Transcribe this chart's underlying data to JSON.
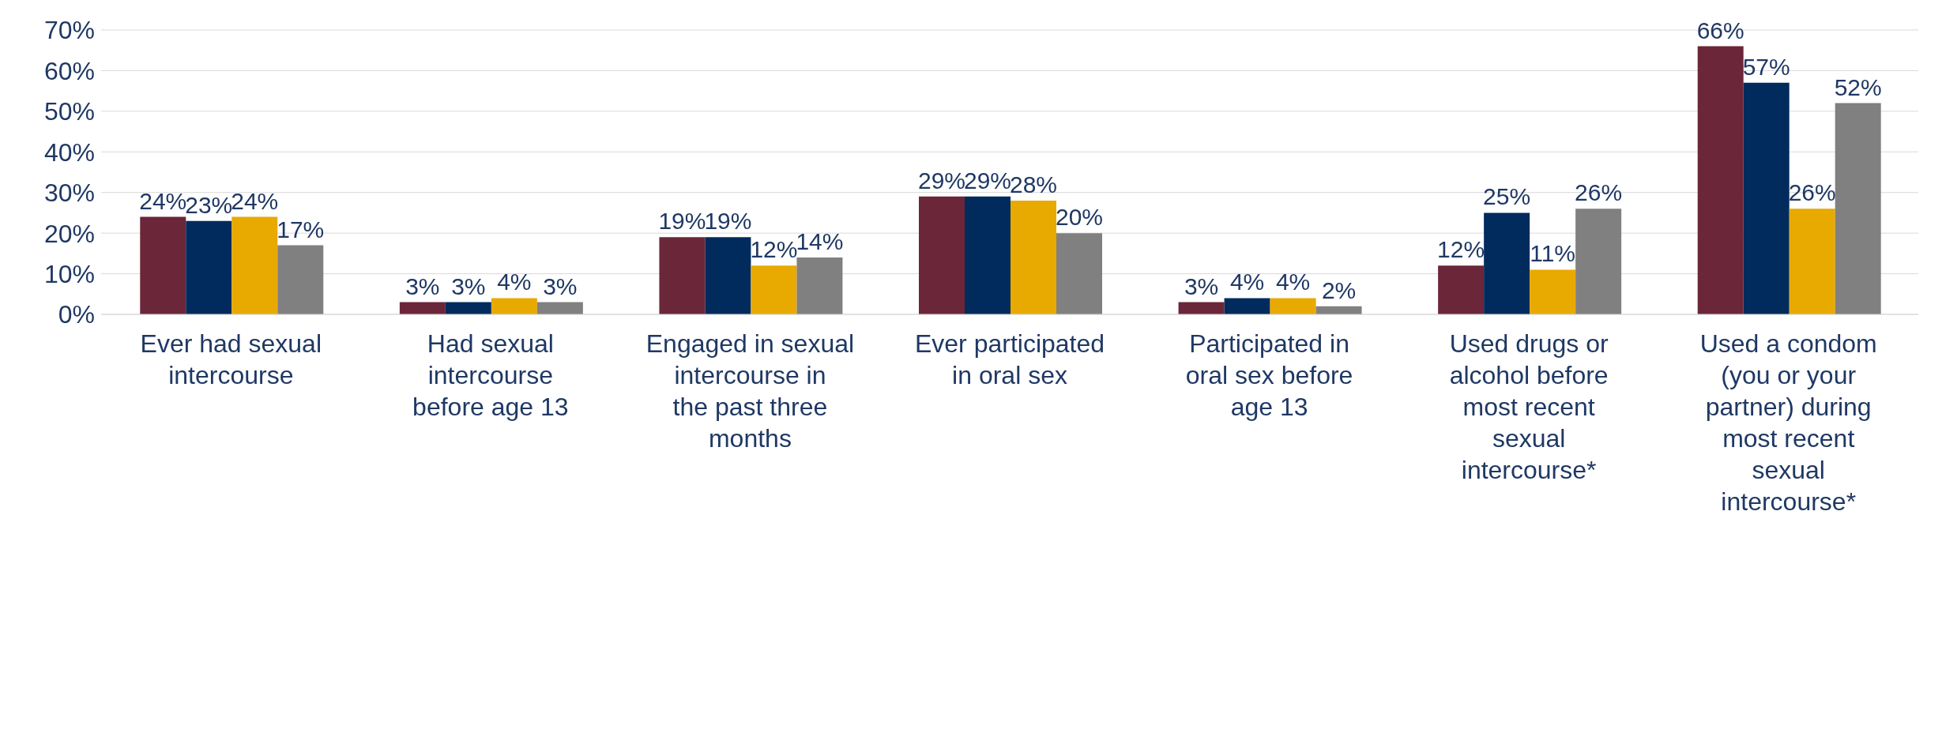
{
  "chart_data": {
    "type": "bar",
    "categories": [
      "Ever had sexual intercourse",
      "Had sexual intercourse before age 13",
      "Engaged in sexual intercourse in the past three months",
      "Ever participated in oral sex",
      "Participated in oral sex before age 13",
      "Used drugs or alcohol before most recent sexual intercourse*",
      "Used a condom (you or your partner) during most recent sexual intercourse*"
    ],
    "series": [
      {
        "color": "#6b2639",
        "values": [
          24,
          3,
          19,
          29,
          3,
          12,
          66
        ],
        "value_labels": [
          "24%",
          "3%",
          "19%",
          "29%",
          "3%",
          "12%",
          "66%"
        ]
      },
      {
        "color": "#002b5c",
        "values": [
          23,
          3,
          19,
          29,
          4,
          25,
          57
        ],
        "value_labels": [
          "23%",
          "3%",
          "19%",
          "29%",
          "4%",
          "25%",
          "57%"
        ]
      },
      {
        "color": "#e8a900",
        "values": [
          24,
          4,
          12,
          28,
          4,
          11,
          26
        ],
        "value_labels": [
          "24%",
          "4%",
          "12%",
          "28%",
          "4%",
          "11%",
          "26%"
        ]
      },
      {
        "color": "#808080",
        "values": [
          17,
          3,
          14,
          20,
          2,
          26,
          52
        ],
        "value_labels": [
          "17%",
          "3%",
          "14%",
          "20%",
          "2%",
          "26%",
          "52%"
        ]
      }
    ],
    "ylim": [
      0,
      70
    ],
    "yticks": [
      {
        "value": 0,
        "label": "0%"
      },
      {
        "value": 10,
        "label": "10%"
      },
      {
        "value": 20,
        "label": "20%"
      },
      {
        "value": 30,
        "label": "30%"
      },
      {
        "value": 40,
        "label": "40%"
      },
      {
        "value": 50,
        "label": "50%"
      },
      {
        "value": 60,
        "label": "60%"
      },
      {
        "value": 70,
        "label": "70%"
      }
    ],
    "grid": "y"
  }
}
